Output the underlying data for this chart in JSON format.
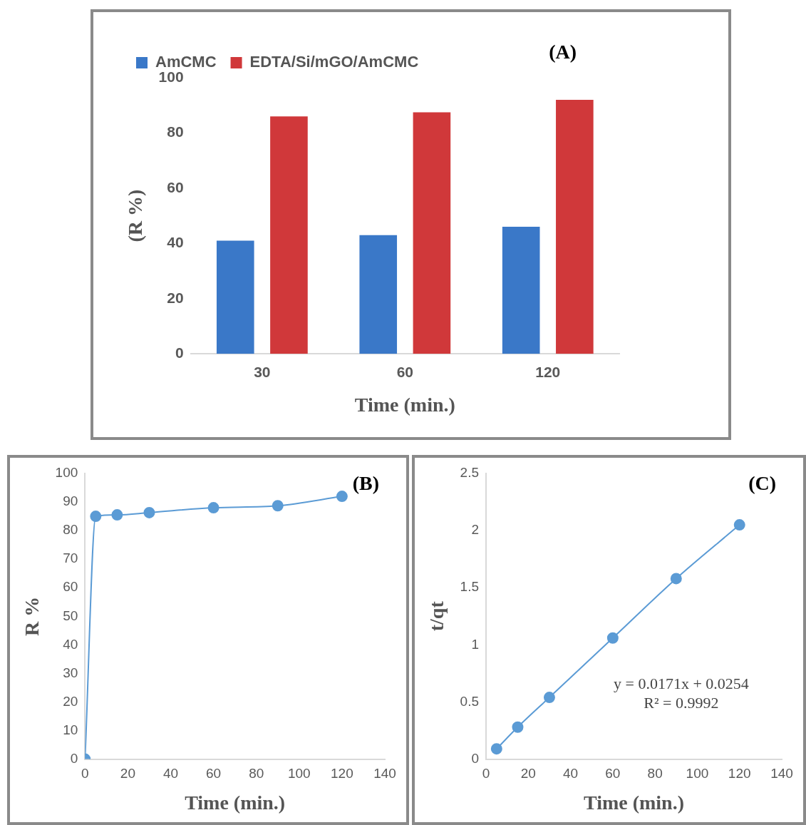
{
  "chart_data": [
    {
      "type": "bar",
      "title": "(A)",
      "xlabel": "Time (min.)",
      "ylabel": "(R %)",
      "categories": [
        "30",
        "60",
        "120"
      ],
      "series": [
        {
          "name": "AmCMC",
          "color": "#3a78c8",
          "values": [
            41,
            43,
            46
          ]
        },
        {
          "name": "EDTA/Si/mGO/AmCMC",
          "color": "#d0383a",
          "values": [
            86,
            87.5,
            92
          ]
        }
      ],
      "ylim": [
        0,
        100
      ],
      "yticks": [
        0,
        20,
        40,
        60,
        80,
        100
      ],
      "grid": false,
      "legend": "top left"
    },
    {
      "type": "line",
      "title": "(B)",
      "xlabel": "Time (min.)",
      "ylabel": "R %",
      "x": [
        0,
        5,
        15,
        30,
        60,
        90,
        120
      ],
      "series": [
        {
          "color": "#5b9bd5",
          "values": [
            0,
            85,
            85.5,
            86.3,
            88,
            88.7,
            92
          ]
        }
      ],
      "xlim": [
        0,
        140
      ],
      "xticks": [
        0,
        20,
        40,
        60,
        80,
        100,
        120,
        140
      ],
      "ylim": [
        0,
        100
      ],
      "yticks": [
        0,
        10,
        20,
        30,
        40,
        50,
        60,
        70,
        80,
        90,
        100
      ],
      "grid": false,
      "legend": false,
      "marker": "circle"
    },
    {
      "type": "line",
      "title": "(C)",
      "xlabel": "Time (min.)",
      "ylabel": "t/qt",
      "x": [
        5,
        15,
        30,
        60,
        90,
        120
      ],
      "series": [
        {
          "color": "#5b9bd5",
          "values": [
            0.09,
            0.28,
            0.54,
            1.06,
            1.58,
            2.05
          ]
        }
      ],
      "xlim": [
        0,
        140
      ],
      "xticks": [
        0,
        20,
        40,
        60,
        80,
        100,
        120,
        140
      ],
      "ylim": [
        0,
        2.5
      ],
      "yticks": [
        0,
        0.5,
        1,
        1.5,
        2,
        2.5
      ],
      "grid": false,
      "legend": false,
      "marker": "circle",
      "annotations": [
        "y = 0.0171x + 0.0254",
        "R² = 0.9992"
      ]
    }
  ]
}
